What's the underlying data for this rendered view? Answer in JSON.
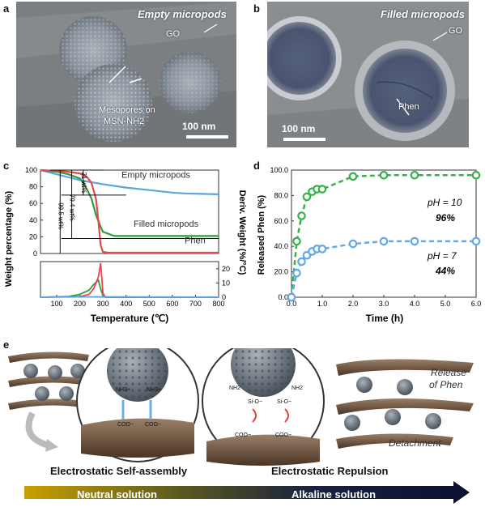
{
  "panel_labels": {
    "a": "a",
    "b": "b",
    "c": "c",
    "d": "d",
    "e": "e"
  },
  "panel_a": {
    "title": "Empty micropods",
    "go_label": "GO",
    "mesopore_label_line1": "Mesopores on",
    "mesopore_label_line2": "MSN-NH2",
    "scale": "100 nm"
  },
  "panel_b": {
    "title": "Filled micropods",
    "go_label": "GO",
    "phen_label": "Phen",
    "scale": "100 nm"
  },
  "panel_c": {
    "ylabel": "Weight percentage (%)",
    "ylabel_right": "Deriv. Weight (%/°C)",
    "xlabel": "Temperature (℃)",
    "series_labels": {
      "empty": "Empty micropods",
      "filled": "Filled micropods",
      "phen": "Phen"
    },
    "annotations": [
      "99.5 wt%",
      "79.4 wt%",
      "21 wt%"
    ],
    "colors": {
      "empty": "#5aa7e0",
      "filled": "#2e9e3e",
      "phen": "#e8464a"
    },
    "chart_data": {
      "type": "line",
      "x_ticks": [
        "100",
        "200",
        "300",
        "400",
        "500",
        "600",
        "700",
        "800"
      ],
      "y_ticks": [
        "0",
        "20",
        "40",
        "60",
        "80",
        "100"
      ],
      "y2_ticks": [
        "0",
        "10",
        "20"
      ],
      "xlim": [
        30,
        800
      ],
      "ylim": [
        0,
        100
      ],
      "y2lim": [
        0,
        25
      ],
      "series": [
        {
          "name": "Empty micropods",
          "x": [
            30,
            100,
            200,
            300,
            400,
            500,
            600,
            650,
            800
          ],
          "y": [
            100,
            95,
            88,
            83,
            79,
            76,
            73,
            72,
            71
          ]
        },
        {
          "name": "Filled micropods",
          "x": [
            30,
            100,
            150,
            200,
            220,
            250,
            270,
            290,
            300,
            350,
            400,
            500,
            600,
            800
          ],
          "y": [
            100,
            98,
            95,
            90,
            83,
            66,
            46,
            32,
            26,
            21,
            21,
            21,
            21,
            21
          ]
        },
        {
          "name": "Phen",
          "x": [
            30,
            100,
            150,
            200,
            230,
            250,
            270,
            280,
            290,
            300,
            320,
            800
          ],
          "y": [
            100,
            99,
            98,
            96,
            92,
            85,
            65,
            40,
            10,
            2,
            1,
            1
          ]
        }
      ],
      "deriv_series": [
        {
          "name": "Filled micropods",
          "x": [
            30,
            150,
            200,
            240,
            260,
            280,
            290,
            300,
            320,
            800
          ],
          "y": [
            0,
            0.5,
            2,
            5,
            9,
            12,
            6,
            1,
            0,
            0
          ]
        },
        {
          "name": "Phen",
          "x": [
            30,
            200,
            240,
            260,
            280,
            290,
            295,
            300,
            310,
            800
          ],
          "y": [
            0,
            0.5,
            2,
            6,
            14,
            24,
            14,
            3,
            0,
            0
          ]
        },
        {
          "name": "Empty micropods",
          "x": [
            30,
            300,
            800
          ],
          "y": [
            0,
            0.3,
            0
          ]
        }
      ]
    }
  },
  "panel_d": {
    "ylabel": "Released Phen (%)",
    "xlabel": "Time (h)",
    "ph10_label": "pH = 10",
    "ph10_value": "96%",
    "ph7_label": "pH = 7",
    "ph7_value": "44%",
    "colors": {
      "ph10": "#35b24a",
      "ph7": "#63a9e6"
    },
    "chart_data": {
      "type": "scatter",
      "x_ticks": [
        "0.0",
        "1.0",
        "2.0",
        "3.0",
        "4.0",
        "5.0",
        "6.0"
      ],
      "y_ticks": [
        "0.0",
        "20.0",
        "40.0",
        "60.0",
        "80.0",
        "100.0"
      ],
      "xlim": [
        0,
        6
      ],
      "ylim": [
        0,
        100
      ],
      "series": [
        {
          "name": "pH = 10",
          "x": [
            0,
            0.17,
            0.33,
            0.5,
            0.67,
            0.83,
            1,
            2,
            3,
            4,
            6
          ],
          "y": [
            0,
            44,
            64,
            79,
            83,
            85,
            85,
            95,
            96,
            96,
            96
          ]
        },
        {
          "name": "pH = 7",
          "x": [
            0,
            0.17,
            0.33,
            0.5,
            0.67,
            0.83,
            1,
            2,
            3,
            4,
            6
          ],
          "y": [
            0,
            19,
            28,
            33,
            36,
            38,
            38,
            42,
            44,
            44,
            44
          ]
        }
      ]
    }
  },
  "panel_e": {
    "left_caption": "Electrostatic Self-assembly",
    "right_caption": "Electrostatic Repulsion",
    "release_label_line1": "Release",
    "release_label_line2": "of Phen",
    "detachment_label": "Detachment",
    "nh3_label": "NH3+",
    "coo_label": "COO−",
    "nh2_label": "NH2",
    "sio_label": "Si-O−",
    "neutral_label": "Neutral solution",
    "alkaline_label": "Alkaline solution"
  }
}
